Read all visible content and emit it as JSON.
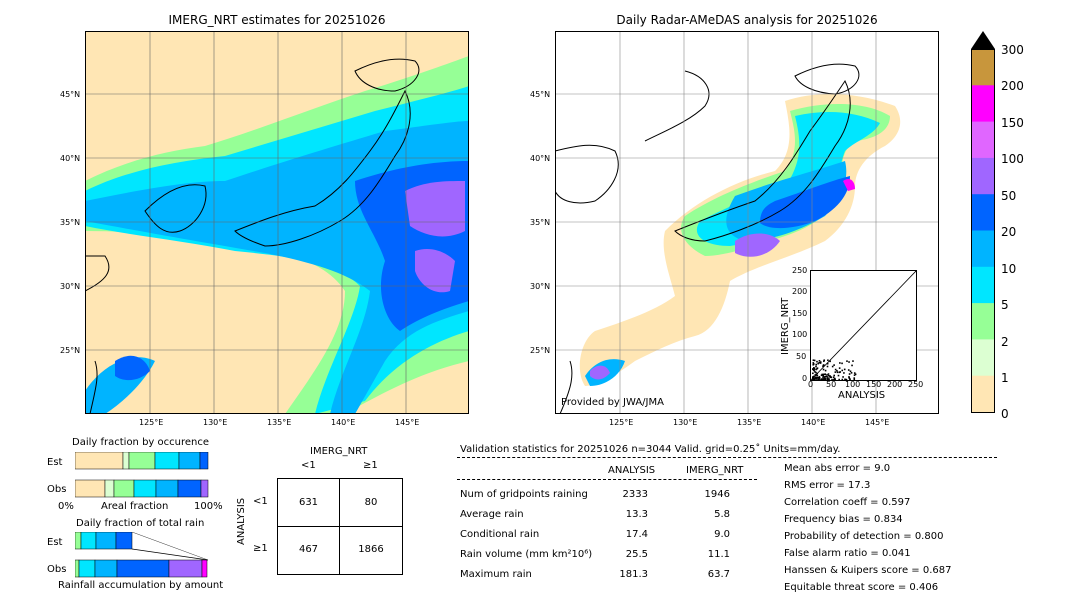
{
  "left_map": {
    "title": "IMERG_NRT estimates for 20251026",
    "lat_labels": [
      "45°N",
      "40°N",
      "35°N",
      "30°N",
      "25°N"
    ],
    "lon_labels": [
      "125°E",
      "130°E",
      "135°E",
      "140°E",
      "145°E"
    ]
  },
  "right_map": {
    "title": "Daily Radar-AMeDAS analysis for 20251026",
    "lat_labels": [
      "45°N",
      "40°N",
      "35°N",
      "30°N",
      "25°N"
    ],
    "lon_labels": [
      "125°E",
      "130°E",
      "135°E",
      "140°E",
      "145°E"
    ],
    "credit": "Provided by JWA/JMA"
  },
  "colorbar": {
    "ticks": [
      "300",
      "200",
      "150",
      "100",
      "50",
      "20",
      "10",
      "5",
      "2",
      "1",
      "0"
    ],
    "colors": [
      "#c8963c",
      "#ff00ff",
      "#e066ff",
      "#a066ff",
      "#0064ff",
      "#00b4ff",
      "#00e6ff",
      "#96ff96",
      "#dcffd2",
      "#ffe6b4"
    ]
  },
  "scatter": {
    "ylabel": "IMERG_NRT",
    "xlabel": "ANALYSIS",
    "xticks": [
      "0",
      "50",
      "100",
      "150",
      "200",
      "250"
    ],
    "yticks": [
      "0",
      "50",
      "100",
      "150",
      "200",
      "250"
    ]
  },
  "occurrence": {
    "title": "Daily fraction by occurence",
    "row_est": "Est",
    "row_obs": "Obs",
    "axis_left": "0%",
    "axis_mid": "Areal fraction",
    "axis_right": "100%"
  },
  "total_rain": {
    "title": "Daily fraction of total rain",
    "row_est": "Est",
    "row_obs": "Obs",
    "footer": "Rainfall accumulation by amount"
  },
  "contingency": {
    "col_header": "IMERG_NRT",
    "col_lt": "<1",
    "col_ge": "≥1",
    "row_header": "ANALYSIS",
    "row_lt": "<1",
    "row_ge": "≥1",
    "cells": [
      "631",
      "80",
      "467",
      "1866"
    ]
  },
  "validation": {
    "header": "Validation statistics for 20251026  n=3044 Valid. grid=0.25˚ Units=mm/day.",
    "col_analysis": "ANALYSIS",
    "col_imerg": "IMERG_NRT",
    "rows": [
      {
        "label": "Num of gridpoints raining",
        "analysis": "2333",
        "imerg": "1946"
      },
      {
        "label": "Average rain",
        "analysis": "13.3",
        "imerg": "5.8"
      },
      {
        "label": "Conditional rain",
        "analysis": "17.4",
        "imerg": "9.0"
      },
      {
        "label": "Rain volume (mm km²10⁶)",
        "analysis": "25.5",
        "imerg": "11.1"
      },
      {
        "label": "Maximum rain",
        "analysis": "181.3",
        "imerg": "63.7"
      }
    ],
    "scores": [
      "Mean abs error =    9.0",
      "RMS error =   17.3",
      "Correlation coeff =  0.597",
      "Frequency bias =  0.834",
      "Probability of detection =  0.800",
      "False alarm ratio =  0.041",
      "Hanssen & Kuipers score =  0.687",
      "Equitable threat score =  0.406"
    ]
  },
  "chart_data": [
    {
      "type": "bar",
      "title": "Daily fraction by occurence",
      "categories": [
        "Est",
        "Obs"
      ],
      "series": [],
      "xlabel": "Areal fraction"
    },
    {
      "type": "bar",
      "title": "Daily fraction of total rain",
      "categories": [
        "Est",
        "Obs"
      ],
      "series": [],
      "xlabel": "Rainfall accumulation by amount"
    },
    {
      "type": "scatter",
      "xlabel": "ANALYSIS",
      "ylabel": "IMERG_NRT",
      "xlim": [
        0,
        250
      ],
      "ylim": [
        0,
        250
      ]
    }
  ]
}
